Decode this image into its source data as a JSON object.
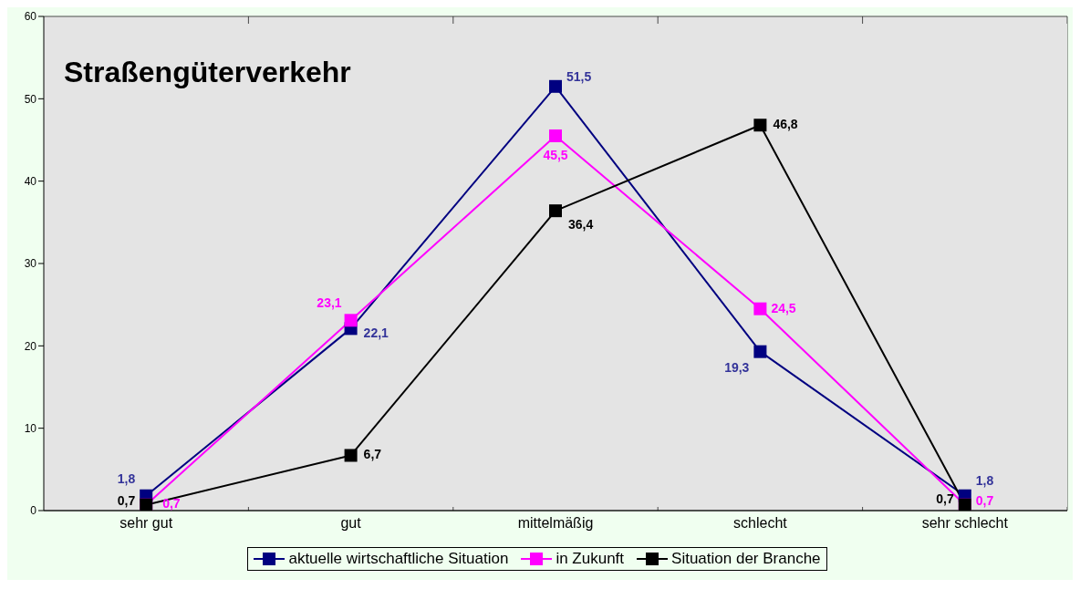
{
  "chart_data": {
    "type": "line",
    "title": "Straßengüterverkehr",
    "categories": [
      "sehr gut",
      "gut",
      "mittelmäßig",
      "schlecht",
      "sehr schlecht"
    ],
    "series": [
      {
        "name": "aktuelle wirtschaftliche Situation",
        "color": "#000080",
        "values": [
          1.8,
          22.1,
          51.5,
          19.3,
          1.8
        ],
        "value_labels": [
          "1,8",
          "22,1",
          "51,5",
          "19,3",
          "1,8"
        ]
      },
      {
        "name": "in Zukunft",
        "color": "#ff00ff",
        "values": [
          0.7,
          23.1,
          45.5,
          24.5,
          0.7
        ],
        "value_labels": [
          "0,7",
          "23,1",
          "45,5",
          "24,5",
          "0,7"
        ]
      },
      {
        "name": "Situation der Branche",
        "color": "#000000",
        "values": [
          0.7,
          6.7,
          36.4,
          46.8,
          0.7
        ],
        "value_labels": [
          "0,7",
          "6,7",
          "36,4",
          "46,8",
          "0,7"
        ]
      }
    ],
    "ylim": [
      0,
      60
    ],
    "yticks": [
      0,
      10,
      20,
      30,
      40,
      50,
      60
    ],
    "grid": true,
    "legend": "bottom",
    "marker": "square",
    "line_style": "solid"
  }
}
